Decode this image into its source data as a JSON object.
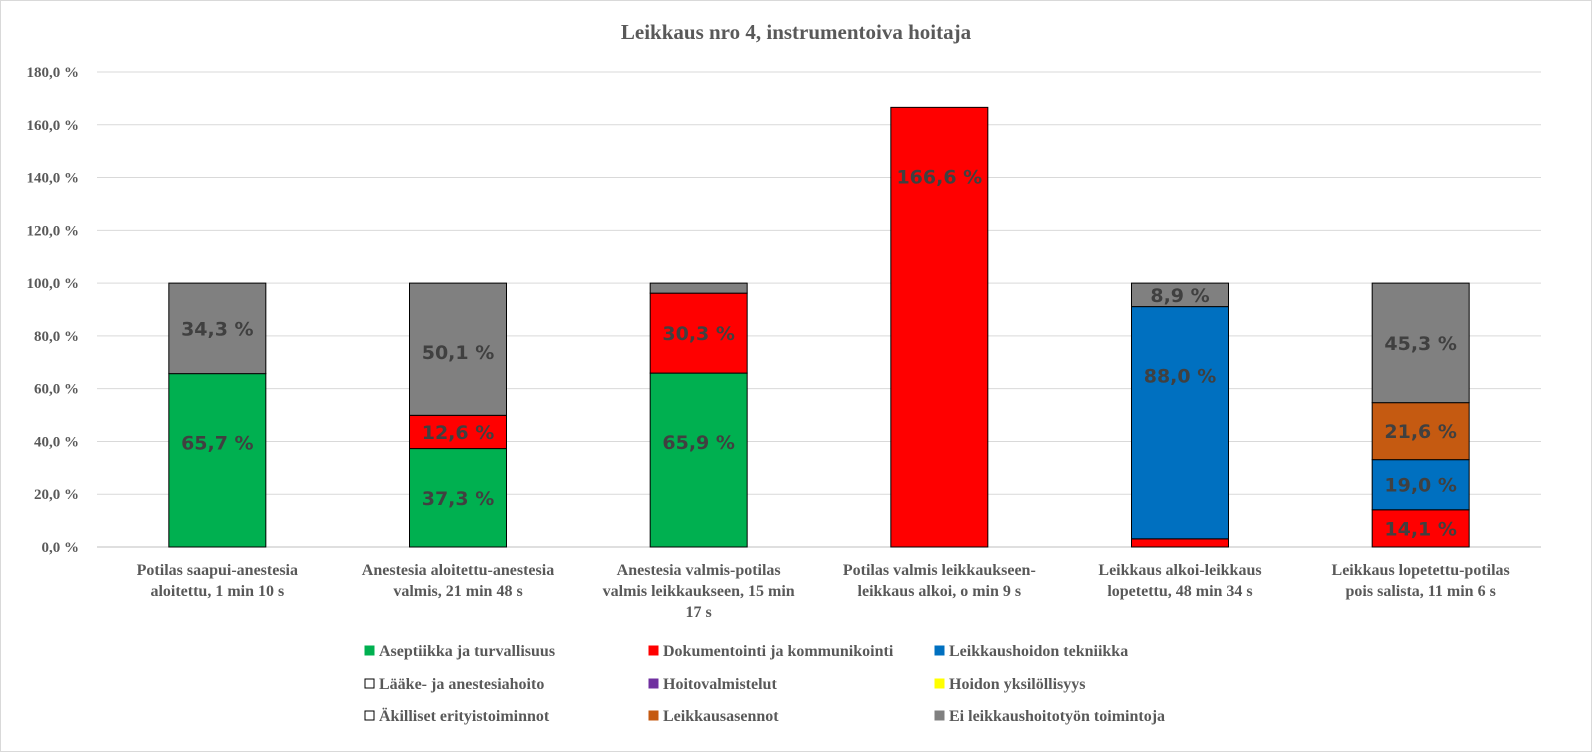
{
  "chart_data": {
    "type": "bar",
    "stacked": true,
    "title": "Leikkaus nro 4, instrumentoiva hoitaja",
    "xlabel": "",
    "ylabel": "",
    "ylim": [
      0,
      180
    ],
    "y_ticks": [
      "0,0 %",
      "20,0 %",
      "40,0 %",
      "60,0 %",
      "80,0 %",
      "100,0 %",
      "120,0 %",
      "140,0 %",
      "160,0 %",
      "180,0 %"
    ],
    "grid": true,
    "legend_position": "bottom",
    "categories": [
      "Potilas saapui-anestesia aloitettu, 1 min 10 s",
      "Anestesia aloitettu-anestesia valmis, 21 min 48 s",
      "Anestesia valmis-potilas valmis leikkaukseen, 15 min 17 s",
      "Potilas valmis leikkaukseen-leikkaus alkoi, o min 9 s",
      "Leikkaus alkoi-leikkaus lopetettu, 48  min 34 s",
      "Leikkaus lopetettu-potilas pois salista, 11 min 6 s"
    ],
    "category_lines": [
      [
        "Potilas saapui-anestesia",
        "aloitettu, 1 min 10 s"
      ],
      [
        "Anestesia aloitettu-anestesia",
        "valmis, 21 min 48 s"
      ],
      [
        "Anestesia valmis-potilas",
        "valmis leikkaukseen, 15 min",
        "17 s"
      ],
      [
        "Potilas valmis leikkaukseen-",
        "leikkaus alkoi, o min 9 s"
      ],
      [
        "Leikkaus alkoi-leikkaus",
        "lopetettu, 48  min 34 s"
      ],
      [
        "Leikkaus lopetettu-potilas",
        "pois salista, 11 min 6 s"
      ]
    ],
    "series": [
      {
        "name": "Aseptiikka ja turvallisuus",
        "color": "#00b050",
        "values": [
          65.7,
          37.3,
          65.9,
          0,
          0,
          0
        ],
        "labels": [
          "65,7 %",
          "37,3 %",
          "65,9 %",
          "",
          "",
          ""
        ]
      },
      {
        "name": "Dokumentointi ja kommunikointi",
        "color": "#ff0000",
        "values": [
          0,
          12.6,
          30.3,
          166.6,
          3.1,
          14.1
        ],
        "labels": [
          "",
          "12,6 %",
          "30,3 %",
          "166,6 %",
          "",
          "14,1 %"
        ]
      },
      {
        "name": "Leikkaushoidon tekniikka",
        "color": "#0070c0",
        "values": [
          0,
          0,
          0,
          0,
          88.0,
          19.0
        ],
        "labels": [
          "",
          "",
          "",
          "",
          "88,0 %",
          "19,0 %"
        ]
      },
      {
        "name": "Lääke- ja anestesiahoito",
        "color": "#ffffff",
        "values": [
          0,
          0,
          0,
          0,
          0,
          0
        ],
        "labels": [
          "",
          "",
          "",
          "",
          "",
          ""
        ]
      },
      {
        "name": "Hoitovalmistelut",
        "color": "#7030a0",
        "values": [
          0,
          0,
          0,
          0,
          0,
          0
        ],
        "labels": [
          "",
          "",
          "",
          "",
          "",
          ""
        ]
      },
      {
        "name": "Hoidon yksilöllisyys",
        "color": "#ffff00",
        "values": [
          0,
          0,
          0,
          0,
          0,
          0
        ],
        "labels": [
          "",
          "",
          "",
          "",
          "",
          ""
        ]
      },
      {
        "name": "Äkilliset erityistoiminnot",
        "color": "#ffffff",
        "values": [
          0,
          0,
          0,
          0,
          0,
          0
        ],
        "labels": [
          "",
          "",
          "",
          "",
          "",
          ""
        ]
      },
      {
        "name": "Leikkausasennot",
        "color": "#c55a11",
        "values": [
          0,
          0,
          0,
          0,
          0,
          21.6
        ],
        "labels": [
          "",
          "",
          "",
          "",
          "",
          "21,6 %"
        ]
      },
      {
        "name": "Ei leikkaushoitotyön toimintoja",
        "color": "#808080",
        "values": [
          34.3,
          50.1,
          3.8,
          0,
          8.9,
          45.3
        ],
        "labels": [
          "34,3 %",
          "50,1 %",
          "",
          "",
          "8,9 %",
          "45,3 %"
        ]
      }
    ]
  }
}
